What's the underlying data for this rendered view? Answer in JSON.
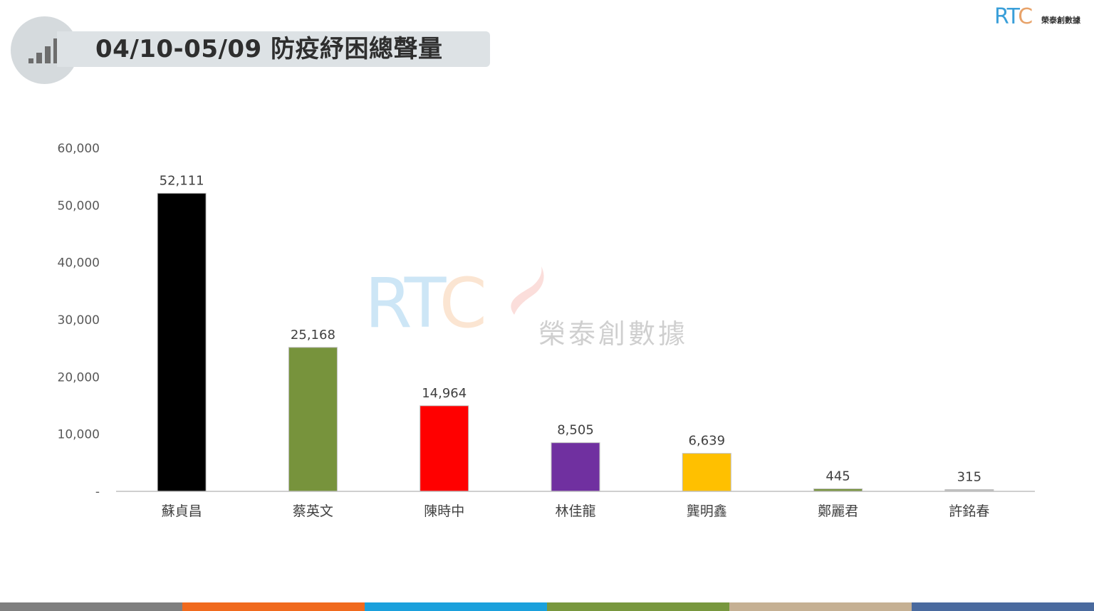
{
  "header": {
    "title": "04/10-05/09 防疫紓困總聲量",
    "icon": "signal-bars-icon"
  },
  "logo": {
    "brand_rt": "RT",
    "brand_c": "C",
    "name": "榮泰創數據"
  },
  "watermark": {
    "brand_rt": "RT",
    "brand_c": "C",
    "name": "榮泰創數據"
  },
  "chart_data": {
    "type": "bar",
    "title": "",
    "xlabel": "",
    "ylabel": "",
    "categories": [
      "蘇貞昌",
      "蔡英文",
      "陳時中",
      "林佳龍",
      "龔明鑫",
      "鄭麗君",
      "許銘春"
    ],
    "values": [
      52111,
      25168,
      14964,
      8505,
      6639,
      445,
      315
    ],
    "value_labels": [
      "52,111",
      "25,168",
      "14,964",
      "8,505",
      "6,639",
      "445",
      "315"
    ],
    "colors": [
      "#000000",
      "#77933c",
      "#ff0000",
      "#7030a0",
      "#ffc000",
      "#77933c",
      "#bfbfbf"
    ],
    "ylim": [
      0,
      60000
    ],
    "yticks": [
      0,
      10000,
      20000,
      30000,
      40000,
      50000,
      60000
    ],
    "ytick_labels": [
      "-",
      "10,000",
      "20,000",
      "30,000",
      "40,000",
      "50,000",
      "60,000"
    ],
    "grid": false,
    "legend": "none"
  },
  "footer_colors": [
    "#7f7f7f",
    "#f06a1e",
    "#1aa0dc",
    "#78973e",
    "#c5b093",
    "#4a6a9e"
  ]
}
